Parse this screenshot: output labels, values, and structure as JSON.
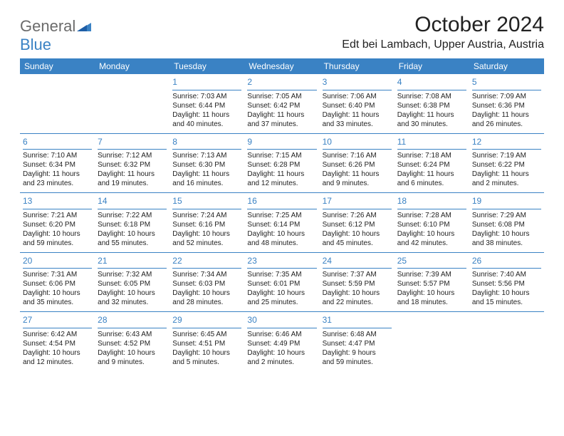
{
  "brand": {
    "general": "General",
    "blue": "Blue"
  },
  "title": "October 2024",
  "location": "Edt bei Lambach, Upper Austria, Austria",
  "colors": {
    "header_bg": "#3a82c4",
    "header_fg": "#ffffff",
    "daynum": "#3a82c4",
    "text": "#222222",
    "background": "#ffffff",
    "logo_gray": "#6b6b6b"
  },
  "weekdays": [
    "Sunday",
    "Monday",
    "Tuesday",
    "Wednesday",
    "Thursday",
    "Friday",
    "Saturday"
  ],
  "weeks": [
    [
      null,
      null,
      {
        "n": "1",
        "sr": "Sunrise: 7:03 AM",
        "ss": "Sunset: 6:44 PM",
        "d1": "Daylight: 11 hours",
        "d2": "and 40 minutes."
      },
      {
        "n": "2",
        "sr": "Sunrise: 7:05 AM",
        "ss": "Sunset: 6:42 PM",
        "d1": "Daylight: 11 hours",
        "d2": "and 37 minutes."
      },
      {
        "n": "3",
        "sr": "Sunrise: 7:06 AM",
        "ss": "Sunset: 6:40 PM",
        "d1": "Daylight: 11 hours",
        "d2": "and 33 minutes."
      },
      {
        "n": "4",
        "sr": "Sunrise: 7:08 AM",
        "ss": "Sunset: 6:38 PM",
        "d1": "Daylight: 11 hours",
        "d2": "and 30 minutes."
      },
      {
        "n": "5",
        "sr": "Sunrise: 7:09 AM",
        "ss": "Sunset: 6:36 PM",
        "d1": "Daylight: 11 hours",
        "d2": "and 26 minutes."
      }
    ],
    [
      {
        "n": "6",
        "sr": "Sunrise: 7:10 AM",
        "ss": "Sunset: 6:34 PM",
        "d1": "Daylight: 11 hours",
        "d2": "and 23 minutes."
      },
      {
        "n": "7",
        "sr": "Sunrise: 7:12 AM",
        "ss": "Sunset: 6:32 PM",
        "d1": "Daylight: 11 hours",
        "d2": "and 19 minutes."
      },
      {
        "n": "8",
        "sr": "Sunrise: 7:13 AM",
        "ss": "Sunset: 6:30 PM",
        "d1": "Daylight: 11 hours",
        "d2": "and 16 minutes."
      },
      {
        "n": "9",
        "sr": "Sunrise: 7:15 AM",
        "ss": "Sunset: 6:28 PM",
        "d1": "Daylight: 11 hours",
        "d2": "and 12 minutes."
      },
      {
        "n": "10",
        "sr": "Sunrise: 7:16 AM",
        "ss": "Sunset: 6:26 PM",
        "d1": "Daylight: 11 hours",
        "d2": "and 9 minutes."
      },
      {
        "n": "11",
        "sr": "Sunrise: 7:18 AM",
        "ss": "Sunset: 6:24 PM",
        "d1": "Daylight: 11 hours",
        "d2": "and 6 minutes."
      },
      {
        "n": "12",
        "sr": "Sunrise: 7:19 AM",
        "ss": "Sunset: 6:22 PM",
        "d1": "Daylight: 11 hours",
        "d2": "and 2 minutes."
      }
    ],
    [
      {
        "n": "13",
        "sr": "Sunrise: 7:21 AM",
        "ss": "Sunset: 6:20 PM",
        "d1": "Daylight: 10 hours",
        "d2": "and 59 minutes."
      },
      {
        "n": "14",
        "sr": "Sunrise: 7:22 AM",
        "ss": "Sunset: 6:18 PM",
        "d1": "Daylight: 10 hours",
        "d2": "and 55 minutes."
      },
      {
        "n": "15",
        "sr": "Sunrise: 7:24 AM",
        "ss": "Sunset: 6:16 PM",
        "d1": "Daylight: 10 hours",
        "d2": "and 52 minutes."
      },
      {
        "n": "16",
        "sr": "Sunrise: 7:25 AM",
        "ss": "Sunset: 6:14 PM",
        "d1": "Daylight: 10 hours",
        "d2": "and 48 minutes."
      },
      {
        "n": "17",
        "sr": "Sunrise: 7:26 AM",
        "ss": "Sunset: 6:12 PM",
        "d1": "Daylight: 10 hours",
        "d2": "and 45 minutes."
      },
      {
        "n": "18",
        "sr": "Sunrise: 7:28 AM",
        "ss": "Sunset: 6:10 PM",
        "d1": "Daylight: 10 hours",
        "d2": "and 42 minutes."
      },
      {
        "n": "19",
        "sr": "Sunrise: 7:29 AM",
        "ss": "Sunset: 6:08 PM",
        "d1": "Daylight: 10 hours",
        "d2": "and 38 minutes."
      }
    ],
    [
      {
        "n": "20",
        "sr": "Sunrise: 7:31 AM",
        "ss": "Sunset: 6:06 PM",
        "d1": "Daylight: 10 hours",
        "d2": "and 35 minutes."
      },
      {
        "n": "21",
        "sr": "Sunrise: 7:32 AM",
        "ss": "Sunset: 6:05 PM",
        "d1": "Daylight: 10 hours",
        "d2": "and 32 minutes."
      },
      {
        "n": "22",
        "sr": "Sunrise: 7:34 AM",
        "ss": "Sunset: 6:03 PM",
        "d1": "Daylight: 10 hours",
        "d2": "and 28 minutes."
      },
      {
        "n": "23",
        "sr": "Sunrise: 7:35 AM",
        "ss": "Sunset: 6:01 PM",
        "d1": "Daylight: 10 hours",
        "d2": "and 25 minutes."
      },
      {
        "n": "24",
        "sr": "Sunrise: 7:37 AM",
        "ss": "Sunset: 5:59 PM",
        "d1": "Daylight: 10 hours",
        "d2": "and 22 minutes."
      },
      {
        "n": "25",
        "sr": "Sunrise: 7:39 AM",
        "ss": "Sunset: 5:57 PM",
        "d1": "Daylight: 10 hours",
        "d2": "and 18 minutes."
      },
      {
        "n": "26",
        "sr": "Sunrise: 7:40 AM",
        "ss": "Sunset: 5:56 PM",
        "d1": "Daylight: 10 hours",
        "d2": "and 15 minutes."
      }
    ],
    [
      {
        "n": "27",
        "sr": "Sunrise: 6:42 AM",
        "ss": "Sunset: 4:54 PM",
        "d1": "Daylight: 10 hours",
        "d2": "and 12 minutes."
      },
      {
        "n": "28",
        "sr": "Sunrise: 6:43 AM",
        "ss": "Sunset: 4:52 PM",
        "d1": "Daylight: 10 hours",
        "d2": "and 9 minutes."
      },
      {
        "n": "29",
        "sr": "Sunrise: 6:45 AM",
        "ss": "Sunset: 4:51 PM",
        "d1": "Daylight: 10 hours",
        "d2": "and 5 minutes."
      },
      {
        "n": "30",
        "sr": "Sunrise: 6:46 AM",
        "ss": "Sunset: 4:49 PM",
        "d1": "Daylight: 10 hours",
        "d2": "and 2 minutes."
      },
      {
        "n": "31",
        "sr": "Sunrise: 6:48 AM",
        "ss": "Sunset: 4:47 PM",
        "d1": "Daylight: 9 hours",
        "d2": "and 59 minutes."
      },
      null,
      null
    ]
  ]
}
